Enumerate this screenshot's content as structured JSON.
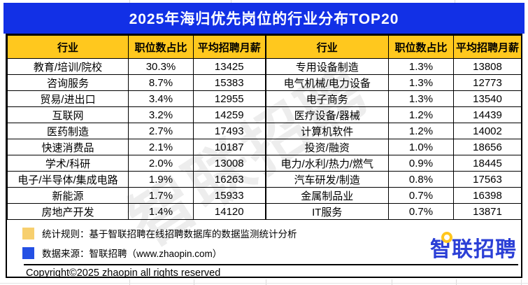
{
  "title": "2025年海归优先岗位的行业分布TOP20",
  "chart_data": {
    "type": "table",
    "title": "2025年海归优先岗位的行业分布TOP20",
    "columns": [
      "行业",
      "职位数占比",
      "平均招聘月薪"
    ],
    "layout_note": "20 rows displayed as two side-by-side 10-row tables sharing the same three column headers",
    "rows": [
      [
        "教育/培训/院校",
        "30.3%",
        13425
      ],
      [
        "咨询服务",
        "8.7%",
        15383
      ],
      [
        "贸易/进出口",
        "3.4%",
        12955
      ],
      [
        "互联网",
        "3.2%",
        14259
      ],
      [
        "医药制造",
        "2.7%",
        17493
      ],
      [
        "快速消费品",
        "2.1%",
        10187
      ],
      [
        "学术/科研",
        "2.0%",
        13008
      ],
      [
        "电子/半导体/集成电路",
        "1.9%",
        16263
      ],
      [
        "新能源",
        "1.7%",
        15933
      ],
      [
        "房地产开发",
        "1.4%",
        14120
      ],
      [
        "专用设备制造",
        "1.3%",
        13808
      ],
      [
        "电气机械/电力设备",
        "1.3%",
        12773
      ],
      [
        "电子商务",
        "1.3%",
        13540
      ],
      [
        "医疗设备/器械",
        "1.2%",
        14439
      ],
      [
        "计算机软件",
        "1.2%",
        14002
      ],
      [
        "投资/融资",
        "1.0%",
        18656
      ],
      [
        "电力/水利/热力/燃气",
        "0.9%",
        18445
      ],
      [
        "汽车研发/制造",
        "0.8%",
        17563
      ],
      [
        "金属制品业",
        "0.7%",
        16398
      ],
      [
        "IT服务",
        "0.7%",
        13871
      ]
    ]
  },
  "watermark_text": "智联招聘",
  "footer": {
    "notes": [
      {
        "swatch_color": "#F7CF6E",
        "text": "统计规则：基于智联招聘在线招聘数据库的数据监测统计分析"
      },
      {
        "swatch_color": "#2450E4",
        "text": "数据来源：智联招聘（www.zhaopin.com）"
      }
    ],
    "copyright": "Copyright©2025 zhaopin all rights reserved",
    "logo_text": "智联招聘"
  },
  "colors": {
    "title_bar_blue": "#1230E6",
    "header_yellow": "#FFC81E",
    "note_yellow": "#F7CF6E",
    "note_blue": "#2450E4",
    "logo_blue": "#2B3FD6",
    "logo_ring_yellow": "#FFC61E",
    "border_black": "#000000"
  }
}
